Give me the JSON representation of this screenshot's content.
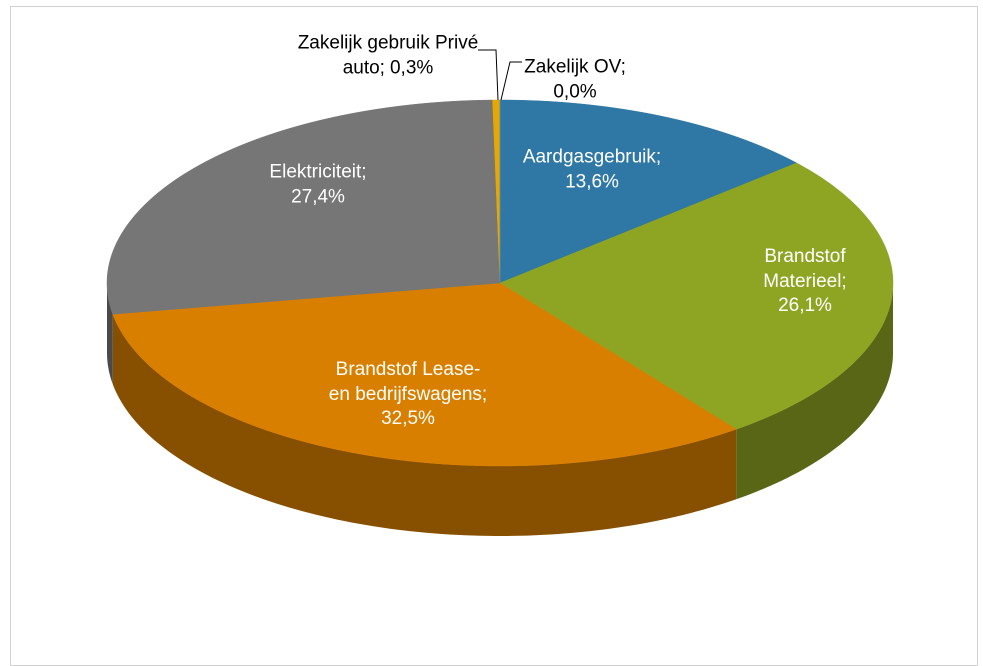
{
  "chart_data": {
    "type": "pie",
    "categories": [
      "Aardgasgebruik;",
      "Brandstof Materieel;",
      "Brandstof Lease- en bedrijfswagens;",
      "Elektriciteit;",
      "Zakelijk gebruik Privé auto;",
      "Zakelijk OV;"
    ],
    "values": [
      13.6,
      26.1,
      32.5,
      27.4,
      0.3,
      0.0
    ],
    "value_labels": [
      "13,6%",
      "26,1%",
      "32,5%",
      "27,4%",
      "0,3%",
      "0,0%"
    ],
    "colors": [
      "#2f77a4",
      "#8ea524",
      "#d97f00",
      "#767676",
      "#e6a800",
      "#4f81bd"
    ]
  }
}
